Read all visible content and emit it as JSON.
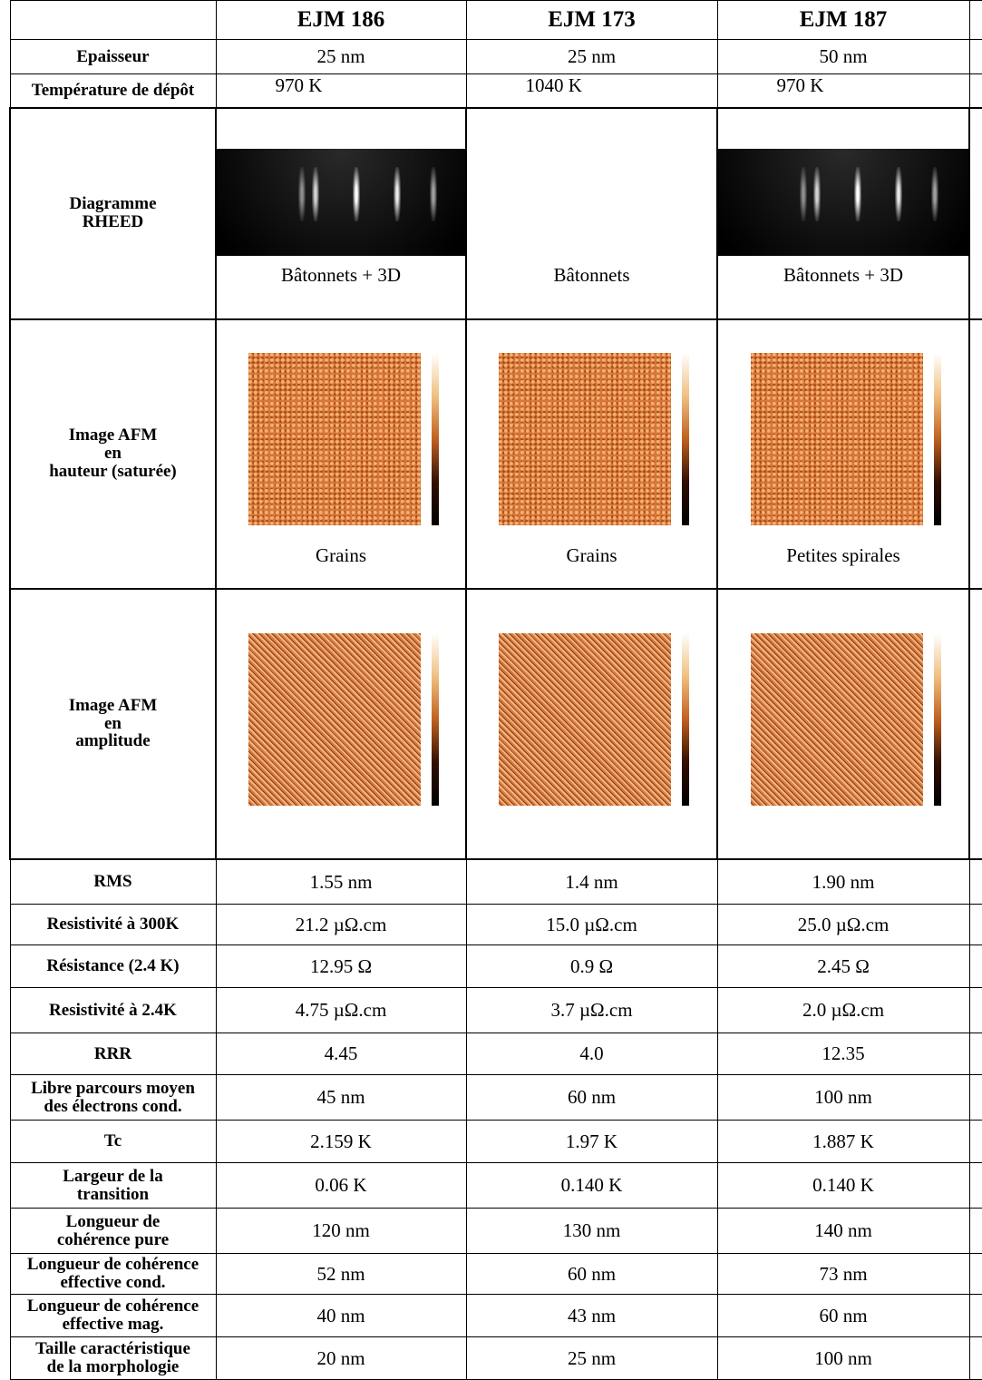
{
  "header": {
    "columns": [
      "EJM 186",
      "EJM 173",
      "EJM 187"
    ]
  },
  "rows": [
    {
      "label": "Epaisseur",
      "cells": [
        "25 nm",
        "25 nm",
        "50 nm"
      ]
    },
    {
      "label": "Température de dépôt",
      "cells": [
        "970 K",
        "1040 K",
        "970 K"
      ]
    },
    {
      "label": "Diagramme\nRHEED",
      "cells": [
        "Bâtonnets + 3D",
        "Bâtonnets",
        "Bâtonnets +  3D"
      ]
    },
    {
      "label": "Image AFM\nen\nhauteur (saturée)",
      "cells": [
        "Grains",
        "Grains",
        "Petites spirales"
      ]
    },
    {
      "label": "Image AFM\nen\namplitude"
    },
    {
      "label": "RMS",
      "cells": [
        "1.55 nm",
        "1.4 nm",
        "1.90 nm"
      ]
    },
    {
      "label": "Resistivité à 300K",
      "cells": [
        "21.2 µΩ.cm",
        "15.0 µΩ.cm",
        "25.0 µΩ.cm"
      ]
    },
    {
      "label": "Résistance  (2.4 K)",
      "cells": [
        "12.95 Ω",
        "0.9 Ω",
        "2.45 Ω"
      ]
    },
    {
      "label": "Resistivité à 2.4K",
      "cells": [
        "4.75 µΩ.cm",
        "3.7 µΩ.cm",
        "2.0 µΩ.cm"
      ]
    },
    {
      "label": "RRR",
      "cells": [
        "4.45",
        "4.0",
        "12.35"
      ]
    },
    {
      "label": "Libre parcours moyen\ndes électrons cond.",
      "cells": [
        "45 nm",
        "60 nm",
        "100 nm"
      ]
    },
    {
      "label": "Tc",
      "cells": [
        "2.159 K",
        "1.97 K",
        "1.887 K"
      ]
    },
    {
      "label": "Largeur de la\ntransition",
      "cells": [
        "0.06 K",
        "0.140 K",
        "0.140 K"
      ]
    },
    {
      "label": "Longueur de\ncohérence pure",
      "cells": [
        "120 nm",
        "130 nm",
        "140 nm"
      ]
    },
    {
      "label": "Longueur de cohérence\neffective cond.",
      "cells": [
        "52 nm",
        "60 nm",
        "73 nm"
      ]
    },
    {
      "label": "Longueur de cohérence\neffective mag.",
      "cells": [
        "40 nm",
        "43 nm",
        "60 nm"
      ]
    },
    {
      "label": "Taille caractéristique\nde la morphologie",
      "cells": [
        "20 nm",
        "25 nm",
        "100 nm"
      ]
    }
  ]
}
